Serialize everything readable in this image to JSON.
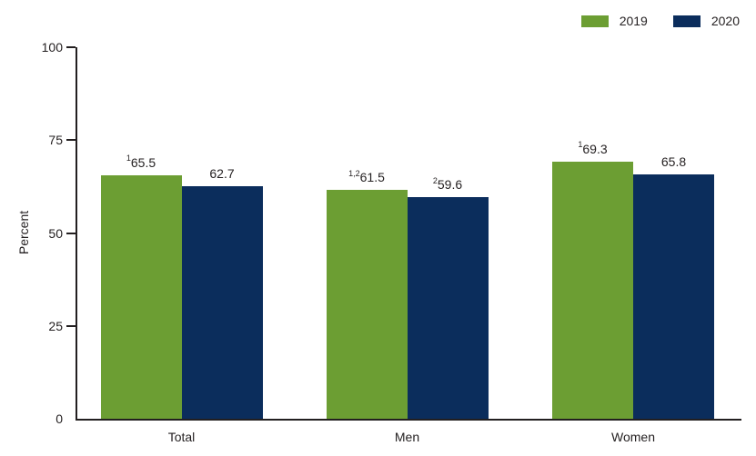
{
  "chart_data": {
    "type": "bar",
    "title": "",
    "xlabel": "",
    "ylabel": "Percent",
    "ylim": [
      0,
      100
    ],
    "yticks": [
      0,
      25,
      50,
      75,
      100
    ],
    "grid": false,
    "legend_position": "top-right",
    "categories": [
      "Total",
      "Men",
      "Women"
    ],
    "series": [
      {
        "name": "2019",
        "color": "#6C9E33",
        "values": [
          65.5,
          61.5,
          69.3
        ],
        "labels": [
          {
            "sup": "1",
            "text": "65.5"
          },
          {
            "sup": "1,2",
            "text": "61.5"
          },
          {
            "sup": "1",
            "text": "69.3"
          }
        ]
      },
      {
        "name": "2020",
        "color": "#0B2D5C",
        "values": [
          62.7,
          59.6,
          65.8
        ],
        "labels": [
          {
            "sup": "",
            "text": "62.7"
          },
          {
            "sup": "2",
            "text": "59.6"
          },
          {
            "sup": "",
            "text": "65.8"
          }
        ]
      }
    ]
  }
}
